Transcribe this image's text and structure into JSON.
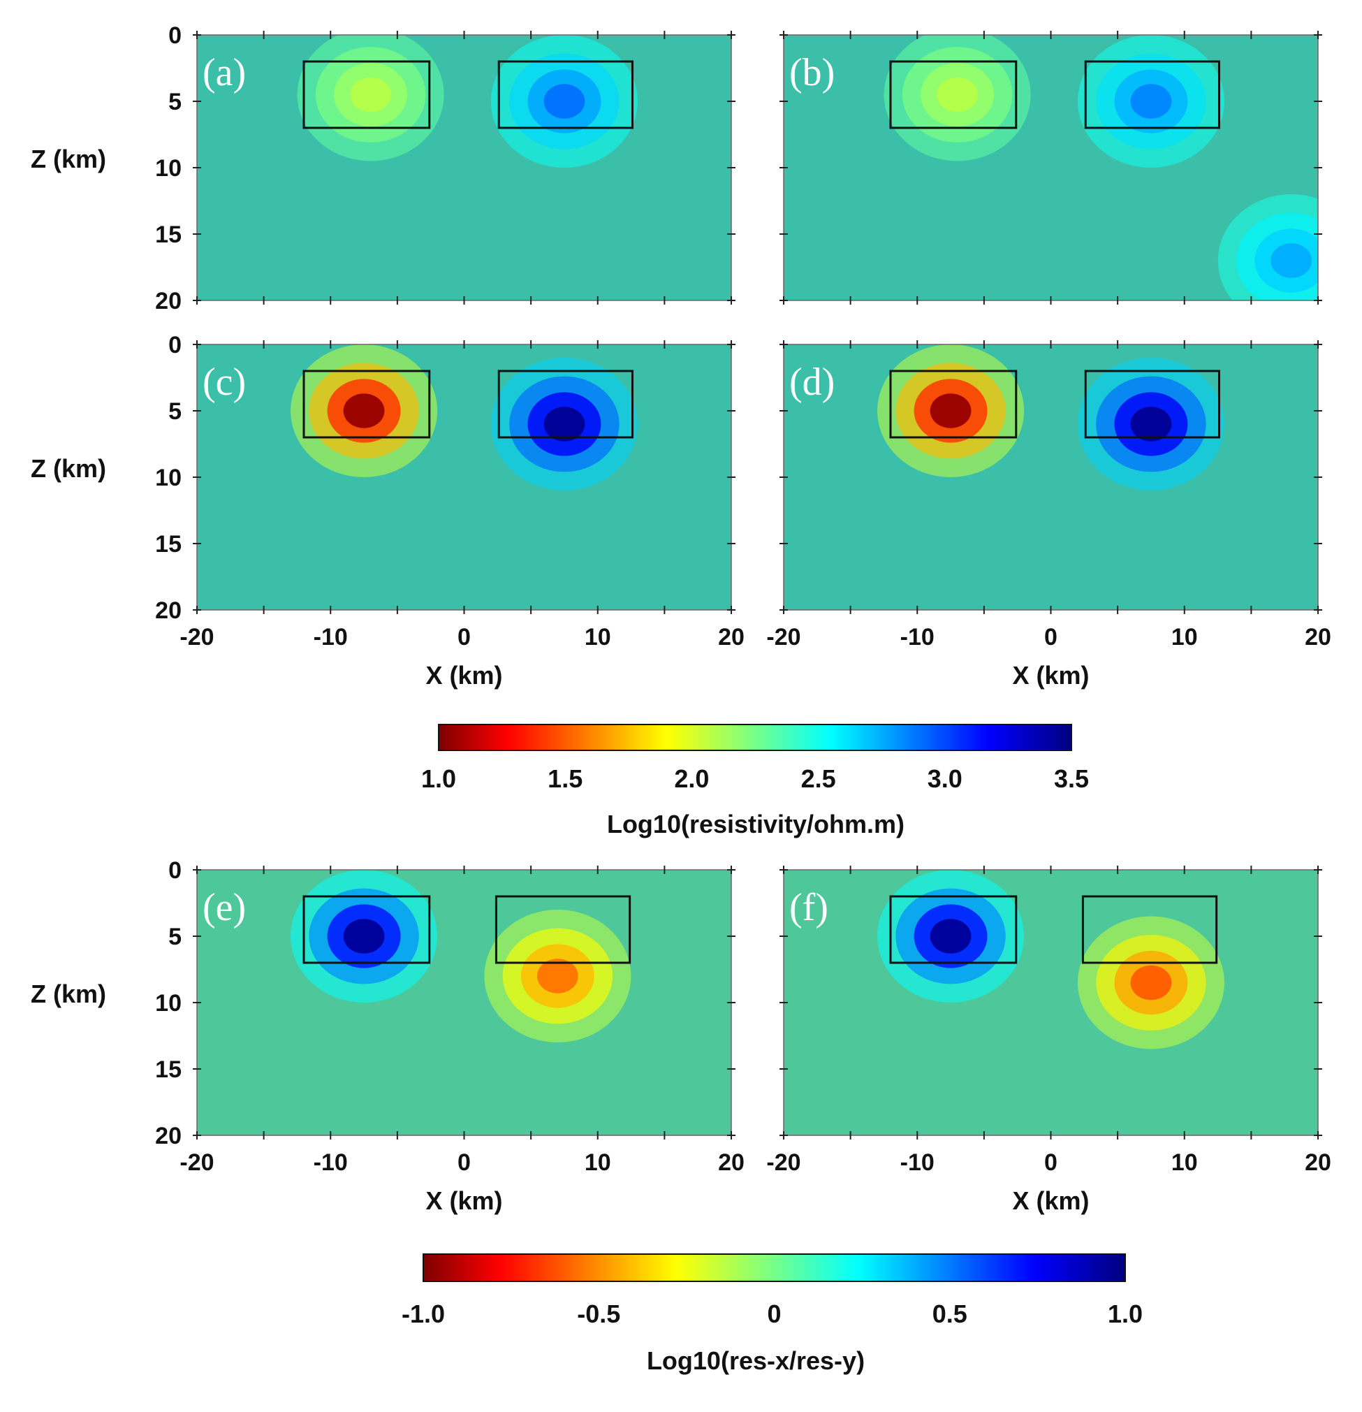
{
  "chart_data": [
    {
      "type": "heatmap",
      "panel": "(a)",
      "title": "",
      "xlabel": "",
      "ylabel": "Z (km)",
      "xlim": [
        -20,
        20
      ],
      "ylim": [
        0,
        20
      ],
      "x_ticks": [],
      "y_ticks": [
        "0",
        "5",
        "10",
        "15",
        "20"
      ],
      "colorbar": "resistivity",
      "boxes_km": [
        [
          -12,
          -2.6,
          2,
          7
        ],
        [
          2.6,
          12.6,
          2,
          7
        ]
      ],
      "anomalies": [
        {
          "x": -7,
          "z": 4.5,
          "value": 2.1
        },
        {
          "x": 7.5,
          "z": 5,
          "value": 2.9
        }
      ],
      "background_value": 2.4
    },
    {
      "type": "heatmap",
      "panel": "(b)",
      "title": "",
      "xlabel": "",
      "ylabel": "",
      "xlim": [
        -20,
        20
      ],
      "ylim": [
        0,
        20
      ],
      "x_ticks": [],
      "y_ticks": [],
      "colorbar": "resistivity",
      "boxes_km": [
        [
          -12,
          -2.6,
          2,
          7
        ],
        [
          2.6,
          12.6,
          2,
          7
        ]
      ],
      "anomalies": [
        {
          "x": -7,
          "z": 4.5,
          "value": 2.1
        },
        {
          "x": 7.5,
          "z": 5,
          "value": 2.85
        },
        {
          "x": 18,
          "z": 17,
          "value": 2.75
        }
      ],
      "background_value": 2.4
    },
    {
      "type": "heatmap",
      "panel": "(c)",
      "title": "",
      "xlabel": "X (km)",
      "ylabel": "Z (km)",
      "xlim": [
        -20,
        20
      ],
      "ylim": [
        0,
        20
      ],
      "x_ticks": [
        "-20",
        "-10",
        "0",
        "10",
        "20"
      ],
      "y_ticks": [
        "0",
        "5",
        "10",
        "15",
        "20"
      ],
      "colorbar": "resistivity",
      "boxes_km": [
        [
          -12,
          -2.6,
          2,
          7
        ],
        [
          2.6,
          12.6,
          2,
          7
        ]
      ],
      "anomalies": [
        {
          "x": -7.5,
          "z": 5,
          "value": 1.05
        },
        {
          "x": 7.5,
          "z": 6,
          "value": 3.45
        }
      ],
      "background_value": 2.4
    },
    {
      "type": "heatmap",
      "panel": "(d)",
      "title": "",
      "xlabel": "X (km)",
      "ylabel": "",
      "xlim": [
        -20,
        20
      ],
      "ylim": [
        0,
        20
      ],
      "x_ticks": [
        "-20",
        "-10",
        "0",
        "10",
        "20"
      ],
      "y_ticks": [],
      "colorbar": "resistivity",
      "boxes_km": [
        [
          -12,
          -2.6,
          2,
          7
        ],
        [
          2.6,
          12.6,
          2,
          7
        ]
      ],
      "anomalies": [
        {
          "x": -7.5,
          "z": 5,
          "value": 1.05
        },
        {
          "x": 7.5,
          "z": 6,
          "value": 3.45
        }
      ],
      "background_value": 2.4
    },
    {
      "type": "heatmap",
      "panel": "(e)",
      "title": "",
      "xlabel": "X (km)",
      "ylabel": "Z (km)",
      "xlim": [
        -20,
        20
      ],
      "ylim": [
        0,
        20
      ],
      "x_ticks": [
        "-20",
        "-10",
        "0",
        "10",
        "20"
      ],
      "y_ticks": [
        "0",
        "5",
        "10",
        "15",
        "20"
      ],
      "colorbar": "anisotropy",
      "boxes_km": [
        [
          -12,
          -2.6,
          2,
          7
        ],
        [
          2.4,
          12.4,
          2,
          7
        ]
      ],
      "anomalies": [
        {
          "x": -7.5,
          "z": 5,
          "value": 0.95
        },
        {
          "x": 7,
          "z": 8,
          "value": -0.55
        }
      ],
      "background_value": 0.0
    },
    {
      "type": "heatmap",
      "panel": "(f)",
      "title": "",
      "xlabel": "X (km)",
      "ylabel": "",
      "xlim": [
        -20,
        20
      ],
      "ylim": [
        0,
        20
      ],
      "x_ticks": [
        "-20",
        "-10",
        "0",
        "10",
        "20"
      ],
      "y_ticks": [],
      "colorbar": "anisotropy",
      "boxes_km": [
        [
          -12,
          -2.6,
          2,
          7
        ],
        [
          2.4,
          12.4,
          2,
          7
        ]
      ],
      "anomalies": [
        {
          "x": -7.5,
          "z": 5,
          "value": 0.95
        },
        {
          "x": 7.5,
          "z": 8.5,
          "value": -0.6
        }
      ],
      "background_value": 0.0
    }
  ],
  "colorbars": {
    "resistivity": {
      "label": "Log10(resistivity/ohm.m)",
      "range": [
        1.0,
        3.5
      ],
      "ticks": [
        "1.0",
        "1.5",
        "2.0",
        "2.5",
        "3.0",
        "3.5"
      ]
    },
    "anisotropy": {
      "label": "Log10(res-x/res-y)",
      "range": [
        -1.0,
        1.0
      ],
      "ticks": [
        "-1.0",
        "-0.5",
        "0",
        "0.5",
        "1.0"
      ]
    }
  },
  "colors": {
    "jet": [
      "#7f0000",
      "#ff0000",
      "#ffff00",
      "#00ffff",
      "#0000ff",
      "#00007f"
    ],
    "box": "#111111",
    "label": "#ffffff"
  }
}
